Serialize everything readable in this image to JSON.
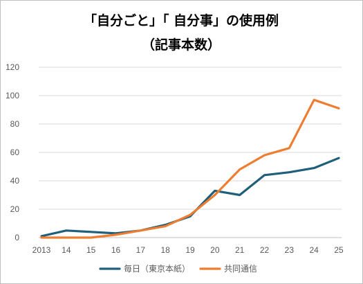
{
  "chart_data": {
    "type": "line",
    "title": "「自分ごと」「 自分事」の使用例",
    "subtitle": "（記事本数）",
    "categories": [
      "2013",
      "14",
      "15",
      "16",
      "17",
      "18",
      "19",
      "20",
      "21",
      "22",
      "23",
      "24",
      "25"
    ],
    "ylim": [
      0,
      120
    ],
    "yticks": [
      0,
      20,
      40,
      60,
      80,
      100,
      120
    ],
    "grid": true,
    "legend_position": "bottom",
    "series": [
      {
        "name": "毎日（東京本紙）",
        "color": "#1f5f7a",
        "values": [
          1,
          5,
          4,
          3,
          5,
          9,
          15,
          33,
          30,
          44,
          46,
          49,
          56
        ]
      },
      {
        "name": "共同通信",
        "color": "#ed7d31",
        "values": [
          0,
          0,
          0,
          2,
          5,
          8,
          16,
          30,
          48,
          58,
          63,
          97,
          91
        ]
      }
    ]
  }
}
